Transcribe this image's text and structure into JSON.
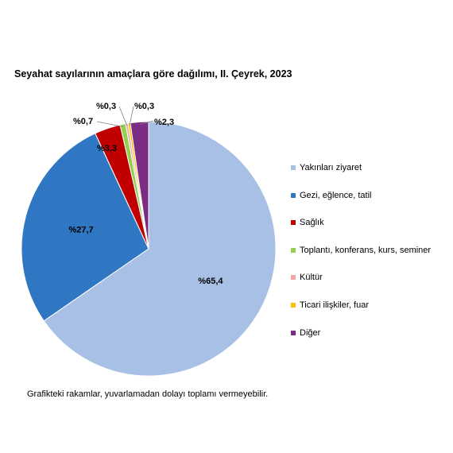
{
  "chart_data": {
    "type": "pie",
    "title": "Seyahat sayılarının amaçlara göre dağılımı, II. Çeyrek, 2023",
    "note": "Grafikteki rakamlar, yuvarlamadan dolayı toplamı vermeyebilir.",
    "legend_position": "right",
    "slices": [
      {
        "name": "Yakınları ziyaret",
        "value": 65.4,
        "label": "%65,4",
        "color": "#a9c0e6"
      },
      {
        "name": "Gezi, eğlence, tatil",
        "value": 27.7,
        "label": "%27,7",
        "color": "#2f77c2"
      },
      {
        "name": "Sağlık",
        "value": 3.3,
        "label": "%3,3",
        "color": "#c00000"
      },
      {
        "name": "Toplantı, konferans, kurs, seminer",
        "value": 0.7,
        "label": "%0,7",
        "color": "#92d050"
      },
      {
        "name": "Kültür",
        "value": 0.3,
        "label": "%0,3",
        "color": "#f4a6a6"
      },
      {
        "name": "Ticari ilişkiler, fuar",
        "value": 0.3,
        "label": "%0,3",
        "color": "#ffc000"
      },
      {
        "name": "Diğer",
        "value": 2.3,
        "label": "%2,3",
        "color": "#7b2c83"
      }
    ]
  }
}
